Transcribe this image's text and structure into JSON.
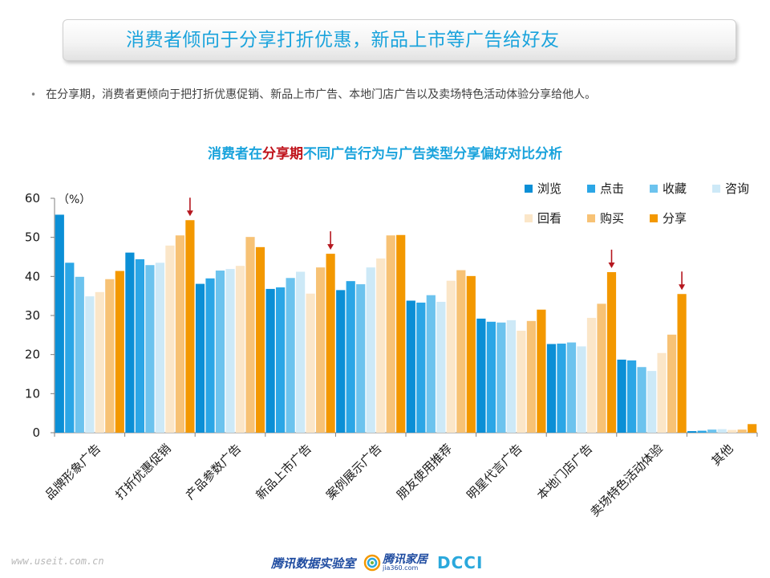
{
  "header": {
    "title": "消费者倾向于分享打折优惠，新品上市等广告给好友"
  },
  "bullet": {
    "text": "在分享期，消费者更倾向于把打折优惠促销、新品上市广告、本地门店广告以及卖场特色活动体验分享给他人。"
  },
  "chart_title": {
    "prefix": "消费者在",
    "highlight": "分享期",
    "suffix": "不同广告行为与广告类型分享偏好对比分析"
  },
  "chart_data": {
    "type": "bar",
    "unit_label": "（%）",
    "ylim": [
      0,
      60
    ],
    "yticks": [
      0,
      10,
      20,
      30,
      40,
      50,
      60
    ],
    "grid": false,
    "legend_position": "top-right",
    "categories": [
      "品牌形象广告",
      "打折优惠促销",
      "产品参数广告",
      "新品上市广告",
      "案例展示广告",
      "朋友使用推荐",
      "明星代言广告",
      "本地门店广告",
      "卖场特色活动体验",
      "其他"
    ],
    "series": [
      {
        "name": "浏览",
        "color": "#0b8fd6",
        "values": [
          55.8,
          46.1,
          38.1,
          36.8,
          36.5,
          33.8,
          29.2,
          22.7,
          18.7,
          0.4
        ]
      },
      {
        "name": "点击",
        "color": "#2ba6e6",
        "values": [
          43.5,
          44.4,
          39.5,
          37.2,
          38.8,
          33.3,
          28.4,
          22.8,
          18.5,
          0.5
        ]
      },
      {
        "name": "收藏",
        "color": "#6cc3ee",
        "values": [
          39.9,
          42.9,
          41.5,
          39.6,
          38.0,
          35.2,
          28.2,
          23.1,
          16.8,
          0.8
        ]
      },
      {
        "name": "咨询",
        "color": "#cde9f7",
        "values": [
          34.9,
          43.5,
          41.9,
          41.2,
          42.3,
          33.5,
          28.8,
          22.1,
          15.8,
          0.9
        ]
      },
      {
        "name": "回看",
        "color": "#fbe6c8",
        "values": [
          36.0,
          47.9,
          42.7,
          35.6,
          44.6,
          38.9,
          26.1,
          29.4,
          20.4,
          0.7
        ]
      },
      {
        "name": "购买",
        "color": "#f7c275",
        "values": [
          39.3,
          50.5,
          50.1,
          42.3,
          50.5,
          41.6,
          28.6,
          33.0,
          25.1,
          0.8
        ]
      },
      {
        "name": "分享",
        "color": "#f39800",
        "values": [
          41.4,
          54.4,
          47.5,
          45.8,
          50.6,
          40.1,
          31.5,
          41.1,
          35.5,
          2.2
        ]
      }
    ],
    "arrow_categories": [
      "打折优惠促销",
      "新品上市广告",
      "本地门店广告",
      "卖场特色活动体验"
    ],
    "arrow_color": "#b5171f"
  },
  "footer": {
    "website": "www.useit.com.cn",
    "logo1": "腾讯数据实验室",
    "logo2": "腾讯家居",
    "logo2_sub": "jia360.com",
    "logo3": "DCCI"
  }
}
